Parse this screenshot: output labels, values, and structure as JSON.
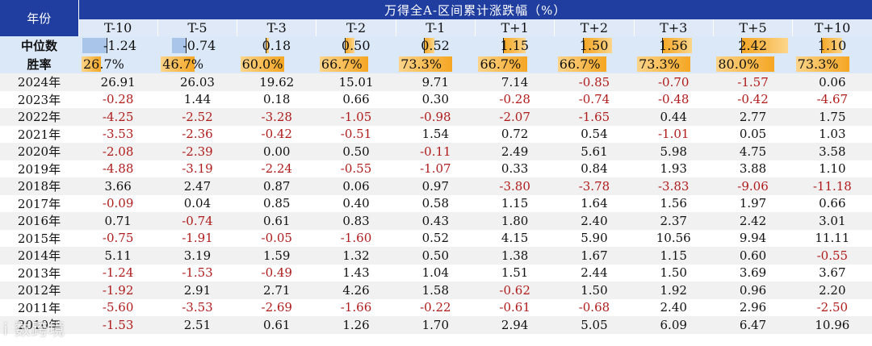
{
  "header": {
    "year_label": "年份",
    "group_title": "万得全A-区间累计涨跌幅（%）",
    "columns": [
      "T-10",
      "T-5",
      "T-3",
      "T-2",
      "T-1",
      "T+1",
      "T+2",
      "T+3",
      "T+5",
      "T+10"
    ]
  },
  "median": {
    "label": "中位数",
    "values": [
      "-1.24",
      "-0.74",
      "0.18",
      "0.50",
      "0.52",
      "1.15",
      "1.50",
      "1.56",
      "2.42",
      "1.10"
    ],
    "bar_colors": {
      "positive": "#f5a623",
      "negative": "#a9c6ea"
    }
  },
  "winrate": {
    "label": "胜率",
    "values": [
      "26.7%",
      "46.7%",
      "60.0%",
      "66.7%",
      "73.3%",
      "66.7%",
      "66.7%",
      "73.3%",
      "80.0%",
      "73.3%"
    ],
    "fractions": [
      0.267,
      0.467,
      0.6,
      0.667,
      0.733,
      0.667,
      0.667,
      0.733,
      0.8,
      0.733
    ]
  },
  "rows": [
    {
      "year": "2024年",
      "values": [
        "26.91",
        "26.03",
        "19.62",
        "15.01",
        "9.71",
        "7.14",
        "-0.85",
        "-0.70",
        "-1.57",
        "0.06"
      ]
    },
    {
      "year": "2023年",
      "values": [
        "-0.28",
        "1.44",
        "0.18",
        "0.66",
        "0.30",
        "-0.28",
        "-0.74",
        "-0.48",
        "-0.42",
        "-4.67"
      ]
    },
    {
      "year": "2022年",
      "values": [
        "-4.25",
        "-2.52",
        "-3.28",
        "-1.05",
        "-0.98",
        "-2.07",
        "-1.65",
        "0.44",
        "2.77",
        "1.75"
      ]
    },
    {
      "year": "2021年",
      "values": [
        "-3.53",
        "-2.36",
        "-0.42",
        "-0.51",
        "1.54",
        "0.72",
        "0.54",
        "-1.01",
        "0.05",
        "1.03"
      ]
    },
    {
      "year": "2020年",
      "values": [
        "-2.08",
        "-2.39",
        "0.00",
        "0.50",
        "-0.11",
        "2.49",
        "5.61",
        "5.98",
        "4.75",
        "3.58"
      ]
    },
    {
      "year": "2019年",
      "values": [
        "-4.88",
        "-3.19",
        "-2.24",
        "-0.55",
        "-1.07",
        "0.33",
        "0.84",
        "1.93",
        "3.88",
        "1.10"
      ]
    },
    {
      "year": "2018年",
      "values": [
        "3.66",
        "2.47",
        "0.87",
        "0.06",
        "0.97",
        "-3.80",
        "-3.78",
        "-3.83",
        "-9.06",
        "-11.18"
      ]
    },
    {
      "year": "2017年",
      "values": [
        "-0.09",
        "0.04",
        "0.85",
        "0.40",
        "0.58",
        "1.15",
        "1.64",
        "1.56",
        "1.97",
        "0.66"
      ]
    },
    {
      "year": "2016年",
      "values": [
        "0.71",
        "-0.74",
        "0.61",
        "0.83",
        "0.43",
        "1.80",
        "2.40",
        "2.37",
        "2.42",
        "3.01"
      ]
    },
    {
      "year": "2015年",
      "values": [
        "-0.75",
        "-1.91",
        "-0.05",
        "-1.60",
        "0.52",
        "4.15",
        "5.90",
        "10.56",
        "9.94",
        "11.11"
      ]
    },
    {
      "year": "2014年",
      "values": [
        "5.11",
        "3.19",
        "1.59",
        "1.32",
        "0.50",
        "1.38",
        "1.67",
        "1.15",
        "0.60",
        "-0.55"
      ]
    },
    {
      "year": "2013年",
      "values": [
        "-1.24",
        "-1.53",
        "-0.49",
        "1.43",
        "1.04",
        "1.51",
        "2.44",
        "1.50",
        "3.69",
        "3.67"
      ]
    },
    {
      "year": "2012年",
      "values": [
        "-1.92",
        "2.91",
        "2.71",
        "4.26",
        "1.58",
        "-0.62",
        "1.50",
        "1.92",
        "0.96",
        "2.20"
      ]
    },
    {
      "year": "2011年",
      "values": [
        "-5.60",
        "-3.53",
        "-2.69",
        "-1.66",
        "-0.22",
        "-0.61",
        "-0.68",
        "2.40",
        "2.96",
        "-2.50"
      ]
    },
    {
      "year": "2010年",
      "values": [
        "-1.53",
        "2.51",
        "0.61",
        "1.26",
        "1.70",
        "2.94",
        "5.05",
        "6.09",
        "6.47",
        "10.96"
      ]
    }
  ],
  "colors": {
    "header_bg": "#1f3ea0",
    "negative_text": "#b01c1c"
  },
  "watermark": "i 数跨境"
}
